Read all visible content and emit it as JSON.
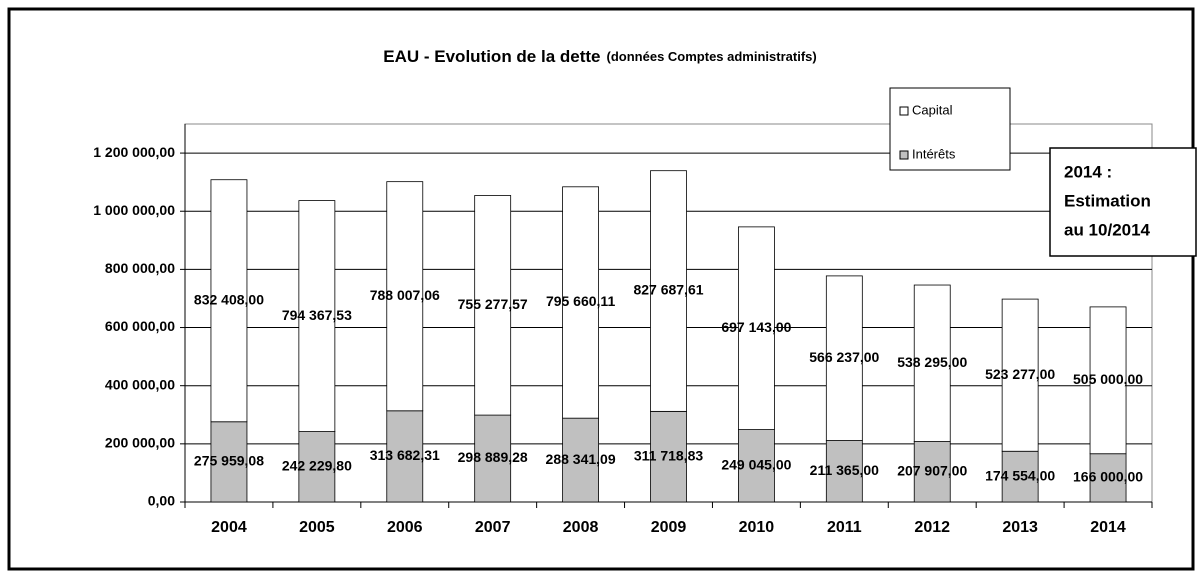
{
  "chart_data": {
    "type": "stacked_bar",
    "title": "EAU - Evolution de la dette",
    "subtitle": "(données Comptes administratifs)",
    "categories": [
      "2004",
      "2005",
      "2006",
      "2007",
      "2008",
      "2009",
      "2010",
      "2011",
      "2012",
      "2013",
      "2014"
    ],
    "series": [
      {
        "name": "Intérêts",
        "color": "#c0c0c0",
        "values": [
          275959.08,
          242229.8,
          313682.31,
          298889.28,
          288341.09,
          311718.83,
          249045.0,
          211365.0,
          207907.0,
          174554.0,
          166000.0
        ],
        "value_labels": [
          "275 959,08",
          "242 229,80",
          "313 682,31",
          "298 889,28",
          "288 341,09",
          "311 718,83",
          "249 045,00",
          "211 365,00",
          "207 907,00",
          "174 554,00",
          "166 000,00"
        ]
      },
      {
        "name": "Capital",
        "color": "#ffffff",
        "values": [
          832408.0,
          794367.53,
          788007.06,
          755277.57,
          795660.11,
          827687.61,
          697143.0,
          566237.0,
          538295.0,
          523277.0,
          505000.0
        ],
        "value_labels": [
          "832 408,00",
          "794 367,53",
          "788 007,06",
          "755 277,57",
          "795 660,11",
          "827 687,61",
          "697 143,00",
          "566 237,00",
          "538 295,00",
          "523 277,00",
          "505 000,00"
        ]
      }
    ],
    "ylim": [
      0,
      1300000
    ],
    "yticks": [
      {
        "value": 0,
        "label": "0,00"
      },
      {
        "value": 200000,
        "label": "200 000,00"
      },
      {
        "value": 400000,
        "label": "400 000,00"
      },
      {
        "value": 600000,
        "label": "600 000,00"
      },
      {
        "value": 800000,
        "label": "800 000,00"
      },
      {
        "value": 1000000,
        "label": "1 000 000,00"
      },
      {
        "value": 1200000,
        "label": "1 200 000,00"
      }
    ],
    "grid": true,
    "annotation": [
      "2014 :",
      "Estimation",
      "au 10/2014"
    ]
  }
}
